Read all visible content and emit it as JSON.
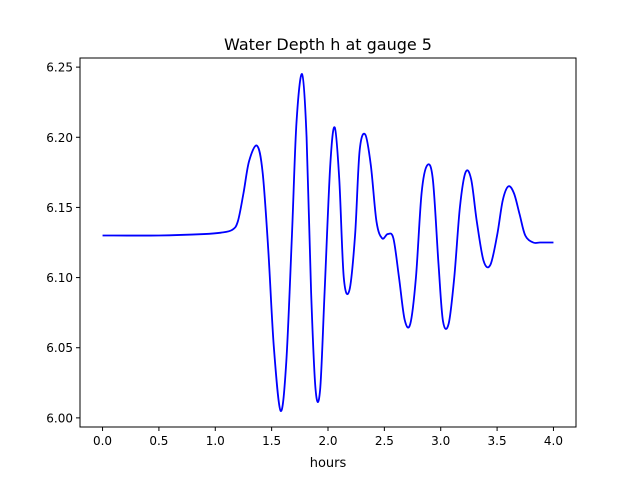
{
  "chart_data": {
    "type": "line",
    "title": "Water Depth h at gauge 5",
    "xlabel": "hours",
    "ylabel": "",
    "xlim": [
      -0.2,
      4.2
    ],
    "ylim": [
      5.9935,
      6.2565
    ],
    "xticks": [
      0.0,
      0.5,
      1.0,
      1.5,
      2.0,
      2.5,
      3.0,
      3.5,
      4.0
    ],
    "xtick_labels": [
      "0.0",
      "0.5",
      "1.0",
      "1.5",
      "2.0",
      "2.5",
      "3.0",
      "3.5",
      "4.0"
    ],
    "yticks": [
      6.0,
      6.05,
      6.1,
      6.15,
      6.2,
      6.25
    ],
    "ytick_labels": [
      "6.00",
      "6.05",
      "6.10",
      "6.15",
      "6.20",
      "6.25"
    ],
    "grid": false,
    "line_color": "#0000ff",
    "series": [
      {
        "x": [
          0.0,
          0.5,
          0.9,
          1.05,
          1.15,
          1.2,
          1.25,
          1.3,
          1.37,
          1.42,
          1.47,
          1.52,
          1.58,
          1.63,
          1.68,
          1.72,
          1.77,
          1.81,
          1.85,
          1.89,
          1.93,
          1.97,
          2.02,
          2.06,
          2.1,
          2.14,
          2.19,
          2.24,
          2.28,
          2.33,
          2.38,
          2.43,
          2.48,
          2.53,
          2.58,
          2.63,
          2.68,
          2.73,
          2.78,
          2.83,
          2.88,
          2.93,
          2.98,
          3.02,
          3.07,
          3.12,
          3.17,
          3.22,
          3.27,
          3.32,
          3.38,
          3.44,
          3.5,
          3.55,
          3.6,
          3.65,
          3.7,
          3.75,
          3.82,
          3.88,
          3.94,
          4.0
        ],
        "y": [
          6.13,
          6.13,
          6.131,
          6.132,
          6.134,
          6.14,
          6.16,
          6.183,
          6.194,
          6.175,
          6.12,
          6.05,
          6.005,
          6.04,
          6.13,
          6.21,
          6.245,
          6.2,
          6.09,
          6.02,
          6.02,
          6.09,
          6.18,
          6.207,
          6.17,
          6.1,
          6.091,
          6.13,
          6.19,
          6.202,
          6.18,
          6.14,
          6.128,
          6.131,
          6.128,
          6.1,
          6.07,
          6.067,
          6.1,
          6.16,
          6.18,
          6.17,
          6.11,
          6.069,
          6.067,
          6.1,
          6.15,
          6.175,
          6.17,
          6.14,
          6.112,
          6.109,
          6.13,
          6.155,
          6.165,
          6.16,
          6.145,
          6.13,
          6.125,
          6.125,
          6.125,
          6.125
        ]
      }
    ]
  }
}
